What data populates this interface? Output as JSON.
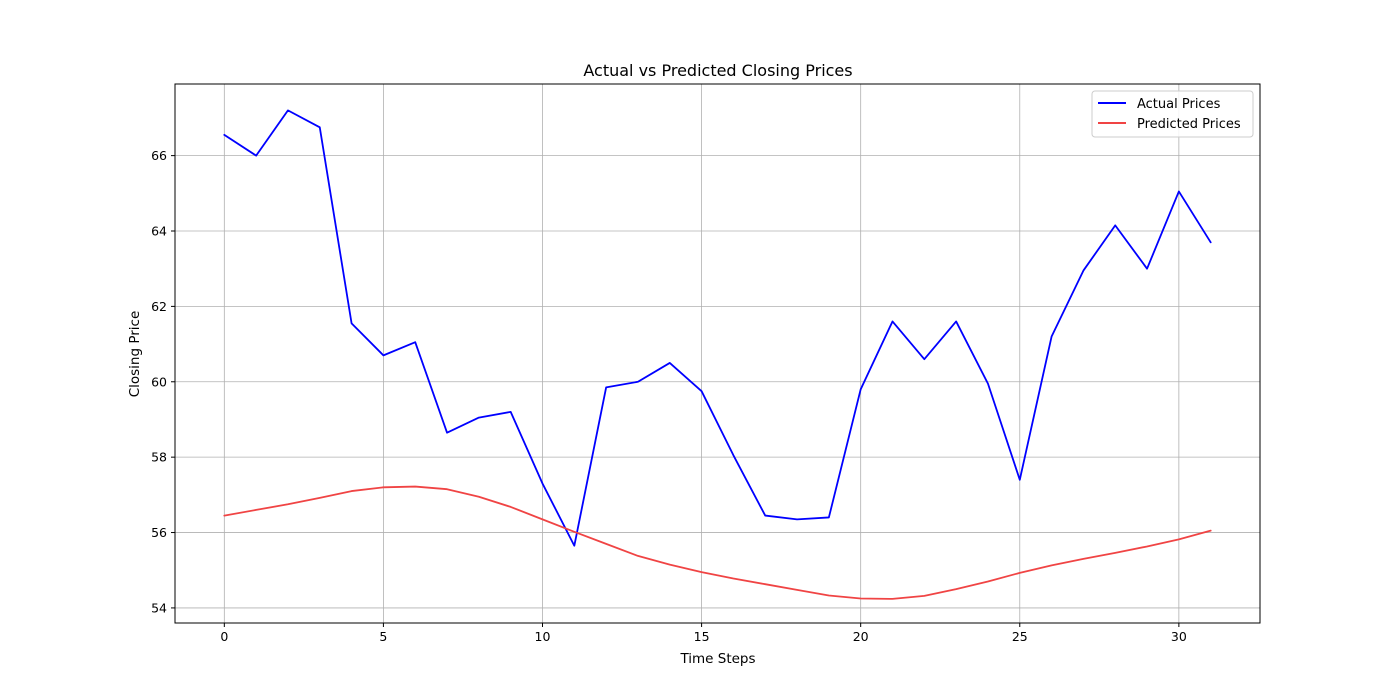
{
  "chart_data": {
    "type": "line",
    "title": "Actual vs Predicted Closing Prices",
    "xlabel": "Time Steps",
    "ylabel": "Closing Price",
    "xlim": [
      -1.55,
      32.55
    ],
    "ylim": [
      53.6,
      67.9
    ],
    "xticks": [
      0,
      5,
      10,
      15,
      20,
      25,
      30
    ],
    "yticks": [
      54,
      56,
      58,
      60,
      62,
      64,
      66
    ],
    "grid": true,
    "legend_position": "top-right",
    "x": [
      0,
      1,
      2,
      3,
      4,
      5,
      6,
      7,
      8,
      9,
      10,
      11,
      12,
      13,
      14,
      15,
      16,
      17,
      18,
      19,
      20,
      21,
      22,
      23,
      24,
      25,
      26,
      27,
      28,
      29,
      30,
      31
    ],
    "series": [
      {
        "name": "Actual Prices",
        "color": "#0000ff",
        "values": [
          66.55,
          66.0,
          67.2,
          66.75,
          61.55,
          60.7,
          61.05,
          58.65,
          59.05,
          59.2,
          57.3,
          55.65,
          59.85,
          60.0,
          60.5,
          59.75,
          58.05,
          56.45,
          56.35,
          56.4,
          59.8,
          61.6,
          60.6,
          61.6,
          59.95,
          57.4,
          61.2,
          62.95,
          64.15,
          63.0,
          65.05,
          63.7
        ]
      },
      {
        "name": "Predicted Prices",
        "color": "#f04444",
        "values": [
          56.45,
          56.6,
          56.75,
          56.92,
          57.1,
          57.2,
          57.22,
          57.15,
          56.95,
          56.68,
          56.35,
          56.02,
          55.7,
          55.38,
          55.15,
          54.95,
          54.78,
          54.63,
          54.48,
          54.33,
          54.25,
          54.24,
          54.32,
          54.5,
          54.7,
          54.93,
          55.13,
          55.3,
          55.46,
          55.63,
          55.82,
          56.05
        ]
      }
    ]
  }
}
